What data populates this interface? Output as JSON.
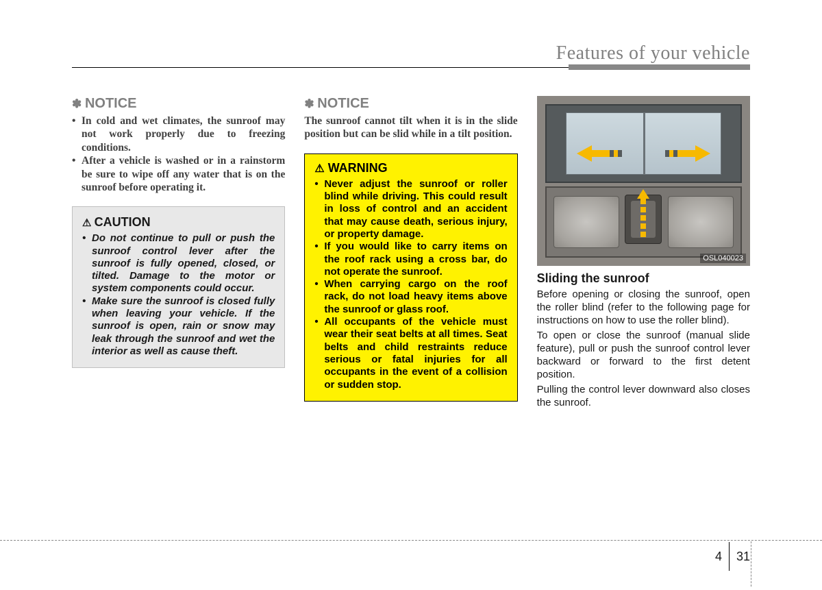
{
  "header": {
    "title": "Features of your vehicle"
  },
  "colors": {
    "header_text": "#808080",
    "caution_bg": "#e8e8e8",
    "warning_bg": "#fff200",
    "arrow": "#f7b900",
    "rule_bar": "#888888"
  },
  "col1": {
    "notice_title": "NOTICE",
    "notice_items": [
      "In cold and wet climates, the sunroof may not work properly due to freezing conditions.",
      "After a vehicle is washed or in a rainstorm be sure to wipe off any water that is on the sunroof before operating it."
    ],
    "caution_title": "CAUTION",
    "caution_items": [
      "Do not continue to pull or push the sunroof control lever after the sunroof is fully opened, closed, or tilted. Damage to the motor or system components could occur.",
      "Make sure the sunroof is closed fully when leaving your vehicle. If the sunroof is open, rain or snow may leak through the sunroof and wet the interior as well as cause theft."
    ]
  },
  "col2": {
    "notice_title": "NOTICE",
    "notice_text": "The sunroof cannot tilt when it is in the slide position but can be slid while in a tilt position.",
    "warning_title": "WARNING",
    "warning_items": [
      "Never adjust the sunroof or roller blind while driving. This could result in loss of control and an accident that may cause death, serious injury, or property damage.",
      "If you would like to carry items on the roof rack using a cross bar, do not operate the sunroof.",
      "When carrying cargo on the roof rack, do not load heavy items above the sunroof or glass roof.",
      "All occupants of the vehicle must wear their seat belts at all times. Seat belts and child restraints reduce serious or fatal injuries for all occupants in the event of a collision or sudden stop."
    ]
  },
  "col3": {
    "figure_code": "OSL040023",
    "section_title": "Sliding the sunroof",
    "paras": [
      "Before opening or closing the sunroof, open the roller blind (refer to the following page for instructions on how to use the roller blind).",
      "To open or close the sunroof (manual slide feature), pull or push the sunroof control lever backward or forward to the first detent position.",
      "Pulling the control lever downward also closes the sunroof."
    ]
  },
  "footer": {
    "section": "4",
    "page": "31"
  }
}
